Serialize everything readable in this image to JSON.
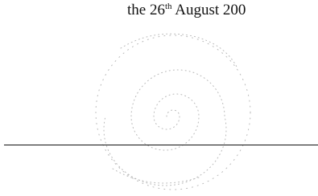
{
  "document": {
    "date_prefix": "the 26",
    "date_suffix": "th",
    "date_rest": " August 200"
  }
}
